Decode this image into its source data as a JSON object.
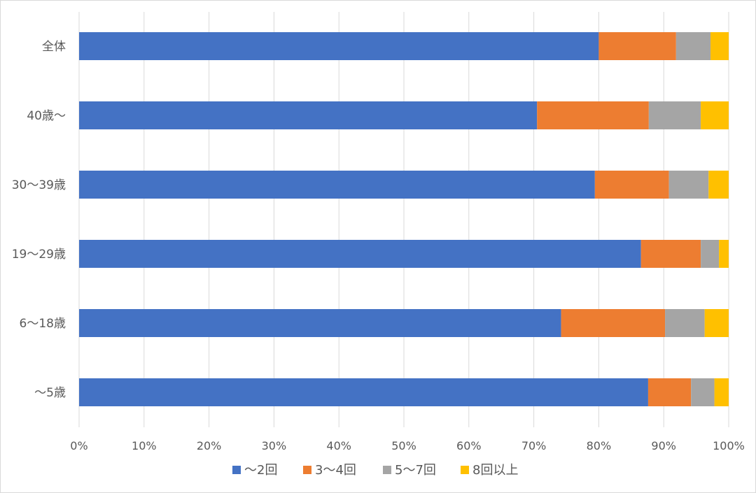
{
  "chart_data": {
    "type": "bar",
    "orientation": "horizontal",
    "stacked": true,
    "categories": [
      "全体",
      "40歳～",
      "30～39歳",
      "19～29歳",
      "6～18歳",
      "～5歳"
    ],
    "series": [
      {
        "name": "～2回",
        "color": "#4472C4",
        "values": [
          80.0,
          70.5,
          79.4,
          86.5,
          74.2,
          87.6
        ]
      },
      {
        "name": "3～4回",
        "color": "#ED7D31",
        "values": [
          11.9,
          17.2,
          11.4,
          9.2,
          16.0,
          6.6
        ]
      },
      {
        "name": "5～7回",
        "color": "#A5A5A5",
        "values": [
          5.3,
          8.0,
          6.1,
          2.8,
          6.1,
          3.6
        ]
      },
      {
        "name": "8回以上",
        "color": "#FFC000",
        "values": [
          2.8,
          4.3,
          3.1,
          1.5,
          3.7,
          2.2
        ]
      }
    ],
    "xlim": [
      0,
      100
    ],
    "x_ticks": [
      "0%",
      "10%",
      "20%",
      "30%",
      "40%",
      "50%",
      "60%",
      "70%",
      "80%",
      "90%",
      "100%"
    ],
    "grid": true,
    "legend_position": "bottom"
  }
}
